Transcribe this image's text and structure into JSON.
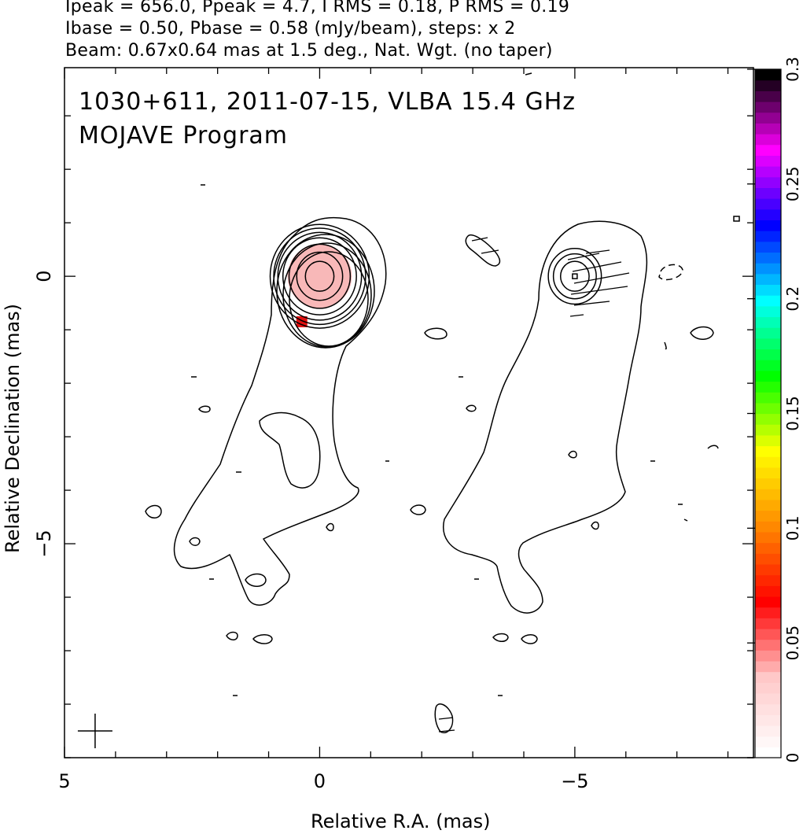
{
  "header": {
    "line1": "Ipeak = 656.0, Ppeak = 4.7, I RMS = 0.18, P RMS = 0.19",
    "line2": "Ibase = 0.50, Pbase = 0.58 (mJy/beam), steps: x 2",
    "line3": "Beam: 0.67x0.64 mas at 1.5 deg., Nat. Wgt. (no taper)"
  },
  "chart_data": {
    "type": "contour",
    "title": "1030+611, 2011-07-15, VLBA 15.4 GHz",
    "subtitle": "MOJAVE Program",
    "xlabel": "Relative R.A. (mas)",
    "ylabel": "Relative Declination (mas)",
    "xlim": [
      5,
      -8.5
    ],
    "ylim": [
      -9,
      3.9
    ],
    "x_ticks": [
      {
        "value": 5,
        "label": "5"
      },
      {
        "value": 0,
        "label": "0"
      },
      {
        "value": -5,
        "label": "−5"
      }
    ],
    "y_ticks": [
      {
        "value": 0,
        "label": "0"
      },
      {
        "value": -5,
        "label": "−5"
      }
    ],
    "colorbar": {
      "range": [
        0,
        0.3
      ],
      "ticks": [
        "0",
        "0.05",
        "0.1",
        "0.15",
        "0.2",
        "0.25",
        "0.3"
      ],
      "stops": [
        "#ffffff",
        "#ffc8c8",
        "#ff0000",
        "#ff8800",
        "#ffff00",
        "#00ff00",
        "#00ffff",
        "#0000ff",
        "#ff00ff",
        "#000000"
      ]
    },
    "left_panel": {
      "center": [
        0,
        0
      ],
      "core_rings_mas": [
        0.28,
        0.45,
        0.6,
        0.72,
        0.82,
        0.9,
        0.97
      ],
      "fill_color": "#f8b8b8",
      "hot_pixel": {
        "x": 0.35,
        "y": -0.85,
        "color": "#e01010"
      }
    },
    "right_panel": {
      "center": [
        -5,
        0
      ],
      "core_rings_mas": [
        0.28,
        0.42,
        0.52
      ]
    },
    "beam_cross": {
      "x": 4.4,
      "y": -8.5
    }
  }
}
